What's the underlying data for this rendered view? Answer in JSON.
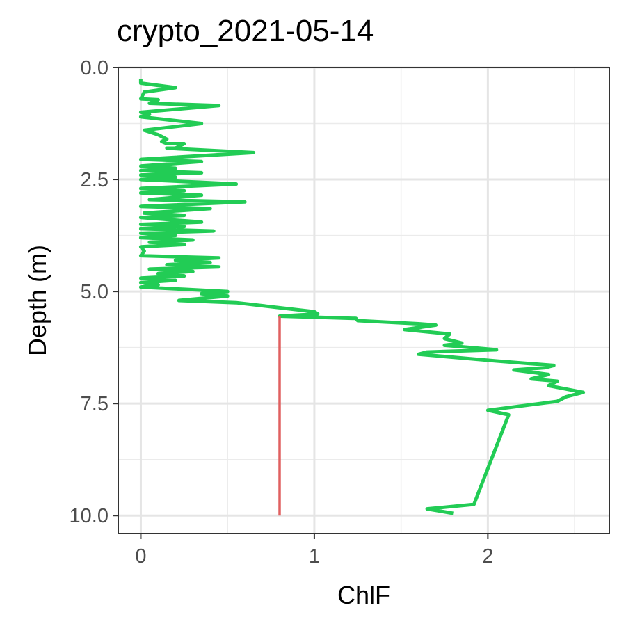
{
  "chart_data": {
    "type": "line",
    "title": "crypto_2021-05-14",
    "xlabel": "ChlF",
    "ylabel": "Depth (m)",
    "xlim": [
      -0.13,
      2.7
    ],
    "ylim": [
      0.0,
      10.4
    ],
    "y_reversed": true,
    "grid": true,
    "x_ticks": [
      {
        "value": 0,
        "label": "0"
      },
      {
        "value": 1,
        "label": "1"
      },
      {
        "value": 2,
        "label": "2"
      }
    ],
    "y_ticks": [
      {
        "value": 0.0,
        "label": "0.0"
      },
      {
        "value": 2.5,
        "label": "2.5"
      },
      {
        "value": 5.0,
        "label": "5.0"
      },
      {
        "value": 7.5,
        "label": "7.5"
      },
      {
        "value": 10.0,
        "label": "10.0"
      }
    ],
    "series": [
      {
        "color": "#22cc55",
        "points": [
          [
            0.0,
            0.25
          ],
          [
            0.0,
            0.35
          ],
          [
            0.2,
            0.45
          ],
          [
            0.02,
            0.55
          ],
          [
            0.0,
            0.7
          ],
          [
            0.1,
            0.72
          ],
          [
            0.05,
            0.8
          ],
          [
            0.45,
            0.85
          ],
          [
            0.0,
            1.0
          ],
          [
            0.05,
            1.05
          ],
          [
            0.0,
            1.1
          ],
          [
            0.35,
            1.25
          ],
          [
            0.02,
            1.4
          ],
          [
            0.1,
            1.5
          ],
          [
            0.15,
            1.6
          ],
          [
            0.12,
            1.65
          ],
          [
            0.15,
            1.7
          ],
          [
            0.25,
            1.7
          ],
          [
            0.2,
            1.8
          ],
          [
            0.15,
            1.8
          ],
          [
            0.65,
            1.9
          ],
          [
            0.0,
            2.05
          ],
          [
            0.35,
            2.1
          ],
          [
            0.0,
            2.2
          ],
          [
            0.2,
            2.25
          ],
          [
            0.0,
            2.3
          ],
          [
            0.35,
            2.35
          ],
          [
            0.0,
            2.4
          ],
          [
            0.2,
            2.45
          ],
          [
            0.0,
            2.5
          ],
          [
            0.55,
            2.6
          ],
          [
            0.0,
            2.7
          ],
          [
            0.25,
            2.75
          ],
          [
            0.0,
            2.8
          ],
          [
            0.35,
            2.85
          ],
          [
            0.05,
            2.95
          ],
          [
            0.6,
            3.0
          ],
          [
            0.0,
            3.1
          ],
          [
            0.4,
            3.15
          ],
          [
            0.02,
            3.25
          ],
          [
            0.25,
            3.3
          ],
          [
            0.0,
            3.35
          ],
          [
            0.35,
            3.45
          ],
          [
            0.0,
            3.5
          ],
          [
            0.25,
            3.55
          ],
          [
            0.0,
            3.6
          ],
          [
            0.42,
            3.65
          ],
          [
            0.0,
            3.7
          ],
          [
            0.2,
            3.75
          ],
          [
            0.0,
            3.8
          ],
          [
            0.3,
            3.85
          ],
          [
            0.05,
            3.9
          ],
          [
            0.25,
            3.95
          ],
          [
            0.0,
            4.0
          ],
          [
            0.02,
            4.1
          ],
          [
            0.0,
            4.2
          ],
          [
            0.45,
            4.25
          ],
          [
            0.2,
            4.3
          ],
          [
            0.4,
            4.35
          ],
          [
            0.15,
            4.4
          ],
          [
            0.45,
            4.45
          ],
          [
            0.05,
            4.5
          ],
          [
            0.3,
            4.55
          ],
          [
            0.1,
            4.6
          ],
          [
            0.25,
            4.65
          ],
          [
            0.0,
            4.7
          ],
          [
            0.2,
            4.75
          ],
          [
            0.0,
            4.8
          ],
          [
            0.1,
            4.85
          ],
          [
            0.0,
            4.9
          ],
          [
            0.25,
            4.95
          ],
          [
            0.5,
            5.0
          ],
          [
            0.35,
            5.05
          ],
          [
            0.5,
            5.1
          ],
          [
            0.22,
            5.2
          ],
          [
            0.55,
            5.25
          ],
          [
            1.0,
            5.45
          ],
          [
            1.02,
            5.5
          ],
          [
            0.8,
            5.55
          ],
          [
            1.24,
            5.6
          ],
          [
            1.25,
            5.65
          ],
          [
            1.6,
            5.72
          ],
          [
            1.7,
            5.75
          ],
          [
            1.52,
            5.85
          ],
          [
            1.78,
            5.95
          ],
          [
            1.75,
            6.05
          ],
          [
            1.85,
            6.15
          ],
          [
            1.75,
            6.2
          ],
          [
            2.05,
            6.3
          ],
          [
            1.65,
            6.35
          ],
          [
            1.6,
            6.4
          ],
          [
            2.05,
            6.55
          ],
          [
            2.38,
            6.65
          ],
          [
            2.33,
            6.7
          ],
          [
            2.15,
            6.75
          ],
          [
            2.35,
            6.85
          ],
          [
            2.25,
            6.95
          ],
          [
            2.4,
            7.0
          ],
          [
            2.35,
            7.1
          ],
          [
            2.55,
            7.25
          ],
          [
            2.45,
            7.35
          ],
          [
            2.4,
            7.45
          ],
          [
            2.0,
            7.65
          ],
          [
            2.12,
            7.75
          ],
          [
            1.92,
            9.75
          ],
          [
            1.65,
            9.85
          ],
          [
            1.8,
            9.95
          ]
        ]
      },
      {
        "color": "#e06060",
        "points": [
          [
            0.8,
            5.55
          ],
          [
            0.8,
            10.0
          ]
        ]
      }
    ]
  }
}
